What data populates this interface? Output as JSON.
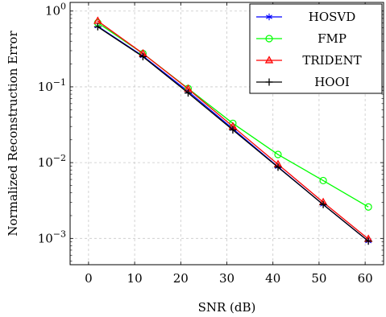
{
  "chart_data": {
    "type": "line",
    "title": "",
    "xlabel": "SNR (dB)",
    "ylabel": "Normalized Reconstruction Error",
    "y_scale": "log",
    "xlim": [
      -4,
      64
    ],
    "ylim": [
      0.00045,
      1.3
    ],
    "grid": true,
    "legend_position": "top-right",
    "x_ticks": [
      0,
      10,
      20,
      30,
      40,
      50,
      60
    ],
    "x_tick_labels": [
      "0",
      "10",
      "20",
      "30",
      "40",
      "50",
      "60"
    ],
    "y_ticks": [
      0.001,
      0.01,
      0.1,
      1
    ],
    "y_tick_labels": [
      {
        "base": "10",
        "exp": "−3"
      },
      {
        "base": "10",
        "exp": "−2"
      },
      {
        "base": "10",
        "exp": "−1"
      },
      {
        "base": "10",
        "exp": "0"
      }
    ],
    "x": [
      2,
      11.8,
      21.6,
      31.3,
      41.1,
      50.9,
      60.7
    ],
    "series": [
      {
        "name": "HOSVD",
        "color": "#0000ff",
        "marker": "asterisk",
        "values": [
          0.63,
          0.255,
          0.087,
          0.028,
          0.0088,
          0.0028,
          0.00092
        ]
      },
      {
        "name": "FMP",
        "color": "#00ff00",
        "marker": "circle",
        "values": [
          0.7,
          0.275,
          0.095,
          0.033,
          0.0128,
          0.0058,
          0.0026
        ]
      },
      {
        "name": "TRIDENT",
        "color": "#ff0000",
        "marker": "triangle",
        "values": [
          0.74,
          0.275,
          0.094,
          0.03,
          0.0095,
          0.003,
          0.00098
        ]
      },
      {
        "name": "HOOI",
        "color": "#000000",
        "marker": "plus",
        "values": [
          0.62,
          0.25,
          0.083,
          0.027,
          0.0087,
          0.0028,
          0.00092
        ]
      }
    ]
  }
}
